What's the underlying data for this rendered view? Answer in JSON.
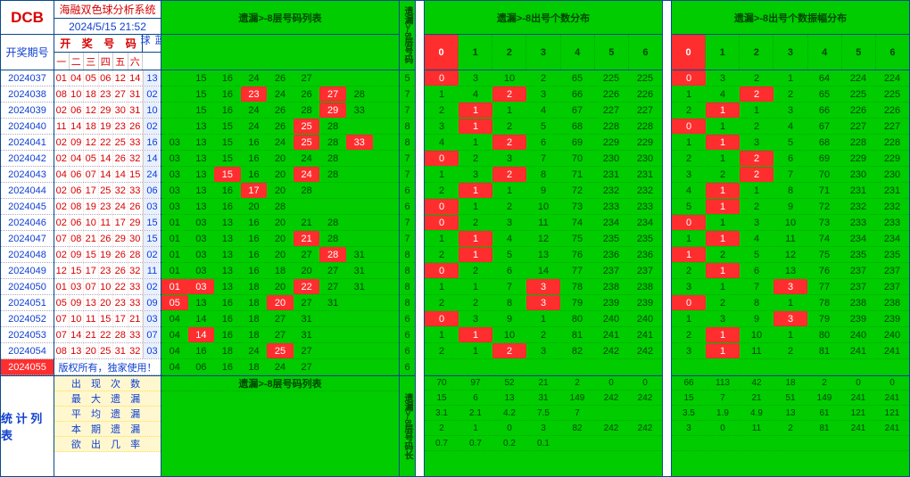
{
  "header": {
    "logo": "DCB",
    "sys_title": "海融双色球分析系统",
    "date_time": "2024/5/15  21:52",
    "issue_head": "开奖期号"
  },
  "prize": {
    "red_head_chars": [
      "开",
      "奖",
      "号",
      "码"
    ],
    "blue_head": "蓝球",
    "day_heads": [
      "一",
      "二",
      "三",
      "四",
      "五",
      "六"
    ],
    "copyright": "版权所有，独家使用！",
    "stat_head": "统 计 列 表",
    "stat_labels": [
      "出 现 次 数",
      "最 大 遗 漏",
      "平 均 遗 漏",
      "本 期 遗 漏",
      "欲  出  几  率"
    ]
  },
  "issues": [
    "2024037",
    "2024038",
    "2024039",
    "2024040",
    "2024041",
    "2024042",
    "2024043",
    "2024044",
    "2024045",
    "2024046",
    "2024047",
    "2024048",
    "2024049",
    "2024050",
    "2024051",
    "2024052",
    "2024053",
    "2024054",
    "2024055"
  ],
  "last_issue_hi": "2024055",
  "prize_rows": [
    {
      "red": [
        "01",
        "04",
        "05",
        "06",
        "12",
        "14"
      ],
      "blue": "13"
    },
    {
      "red": [
        "08",
        "10",
        "18",
        "23",
        "27",
        "31"
      ],
      "blue": "02"
    },
    {
      "red": [
        "02",
        "06",
        "12",
        "29",
        "30",
        "31"
      ],
      "blue": "10"
    },
    {
      "red": [
        "11",
        "14",
        "18",
        "19",
        "23",
        "26"
      ],
      "blue": "02"
    },
    {
      "red": [
        "02",
        "09",
        "12",
        "22",
        "25",
        "33"
      ],
      "blue": "16"
    },
    {
      "red": [
        "02",
        "04",
        "05",
        "14",
        "26",
        "32"
      ],
      "blue": "14"
    },
    {
      "red": [
        "04",
        "06",
        "07",
        "14",
        "14",
        "15"
      ],
      "blue": "24"
    },
    {
      "red": [
        "02",
        "06",
        "17",
        "25",
        "32",
        "33"
      ],
      "blue": "06"
    },
    {
      "red": [
        "02",
        "08",
        "19",
        "23",
        "24",
        "26"
      ],
      "blue": "03"
    },
    {
      "red": [
        "02",
        "06",
        "10",
        "11",
        "17",
        "29"
      ],
      "blue": "15"
    },
    {
      "red": [
        "07",
        "08",
        "21",
        "26",
        "29",
        "30"
      ],
      "blue": "15"
    },
    {
      "red": [
        "02",
        "09",
        "15",
        "19",
        "26",
        "28"
      ],
      "blue": "02"
    },
    {
      "red": [
        "12",
        "15",
        "17",
        "23",
        "26",
        "32"
      ],
      "blue": "11"
    },
    {
      "red": [
        "01",
        "03",
        "07",
        "10",
        "22",
        "33"
      ],
      "blue": "02"
    },
    {
      "red": [
        "05",
        "09",
        "13",
        "20",
        "23",
        "33"
      ],
      "blue": "09"
    },
    {
      "red": [
        "07",
        "10",
        "11",
        "15",
        "17",
        "21"
      ],
      "blue": "03"
    },
    {
      "red": [
        "07",
        "14",
        "21",
        "22",
        "28",
        "33"
      ],
      "blue": "07"
    },
    {
      "red": [
        "08",
        "13",
        "20",
        "25",
        "31",
        "32"
      ],
      "blue": "03"
    },
    {
      "red": [
        "",
        "",
        "",
        "",
        "",
        ""
      ],
      "blue": ""
    }
  ],
  "sec_list": {
    "title": "遗漏>-8层号码列表",
    "foot_title": "遗漏>-8层号码列表",
    "rows": [
      {
        "vals": [
          "",
          "15",
          "16",
          "24",
          "26",
          "27",
          "",
          "",
          ""
        ],
        "hi": []
      },
      {
        "vals": [
          "",
          "15",
          "16",
          "23",
          "24",
          "26",
          "27",
          "28",
          ""
        ],
        "hi": [
          3,
          6
        ]
      },
      {
        "vals": [
          "",
          "15",
          "16",
          "24",
          "26",
          "28",
          "29",
          "33",
          ""
        ],
        "hi": [
          6
        ]
      },
      {
        "vals": [
          "",
          "13",
          "15",
          "24",
          "26",
          "25",
          "28",
          "",
          ""
        ],
        "hi": [
          5
        ]
      },
      {
        "vals": [
          "03",
          "13",
          "15",
          "16",
          "24",
          "25",
          "28",
          "33",
          ""
        ],
        "hi": [
          5,
          7
        ]
      },
      {
        "vals": [
          "03",
          "13",
          "15",
          "16",
          "20",
          "24",
          "28",
          "",
          ""
        ],
        "hi": []
      },
      {
        "vals": [
          "03",
          "13",
          "15",
          "16",
          "20",
          "24",
          "28",
          "",
          ""
        ],
        "hi": [
          2,
          5
        ]
      },
      {
        "vals": [
          "03",
          "13",
          "16",
          "17",
          "20",
          "28",
          "",
          "",
          ""
        ],
        "hi": [
          3
        ]
      },
      {
        "vals": [
          "03",
          "13",
          "16",
          "20",
          "28",
          "",
          "",
          "",
          ""
        ],
        "hi": []
      },
      {
        "vals": [
          "01",
          "03",
          "13",
          "16",
          "20",
          "21",
          "28",
          ""
        ],
        "hi": []
      },
      {
        "vals": [
          "01",
          "03",
          "13",
          "16",
          "20",
          "21",
          "28",
          ""
        ],
        "hi": [
          5
        ]
      },
      {
        "vals": [
          "01",
          "03",
          "13",
          "16",
          "20",
          "27",
          "28",
          "31"
        ],
        "hi": [
          6
        ]
      },
      {
        "vals": [
          "01",
          "03",
          "13",
          "16",
          "18",
          "20",
          "27",
          "31"
        ],
        "hi": []
      },
      {
        "vals": [
          "01",
          "03",
          "13",
          "18",
          "20",
          "22",
          "27",
          "31"
        ],
        "hi": [
          0,
          1,
          5
        ]
      },
      {
        "vals": [
          "05",
          "13",
          "16",
          "18",
          "20",
          "27",
          "31",
          ""
        ],
        "hi": [
          0,
          4
        ]
      },
      {
        "vals": [
          "04",
          "14",
          "16",
          "18",
          "27",
          "31",
          "",
          ""
        ],
        "hi": []
      },
      {
        "vals": [
          "04",
          "14",
          "16",
          "18",
          "27",
          "31",
          "",
          ""
        ],
        "hi": [
          1
        ]
      },
      {
        "vals": [
          "04",
          "16",
          "18",
          "24",
          "25",
          "27",
          "",
          ""
        ],
        "hi": [
          4
        ]
      },
      {
        "vals": [
          "04",
          "06",
          "16",
          "18",
          "24",
          "27",
          "",
          ""
        ],
        "hi": []
      }
    ]
  },
  "narrow1": {
    "title": "遗漏>-8层号码",
    "vals": [
      "5",
      "7",
      "7",
      "8",
      "8",
      "7",
      "7",
      "6",
      "6",
      "7",
      "7",
      "8",
      "8",
      "8",
      "8",
      "6",
      "6",
      "6",
      "6"
    ],
    "hi": [],
    "foot": "遗漏>-8层号码长"
  },
  "sec_dist1": {
    "title": "遗漏>-8出号个数分布",
    "cols": [
      "0",
      "1",
      "2",
      "3",
      "4",
      "5",
      "6"
    ],
    "rows": [
      {
        "vals": [
          "0",
          "3",
          "10",
          "2",
          "65",
          "225",
          "225"
        ],
        "hi": [
          0
        ]
      },
      {
        "vals": [
          "1",
          "4",
          "2",
          "3",
          "66",
          "226",
          "226"
        ],
        "hi": [
          2
        ]
      },
      {
        "vals": [
          "2",
          "1",
          "1",
          "4",
          "67",
          "227",
          "227"
        ],
        "hi": [
          1
        ]
      },
      {
        "vals": [
          "3",
          "1",
          "2",
          "5",
          "68",
          "228",
          "228"
        ],
        "hi": [
          1
        ]
      },
      {
        "vals": [
          "4",
          "1",
          "2",
          "6",
          "69",
          "229",
          "229"
        ],
        "hi": [
          2
        ]
      },
      {
        "vals": [
          "0",
          "2",
          "3",
          "7",
          "70",
          "230",
          "230"
        ],
        "hi": [
          0
        ]
      },
      {
        "vals": [
          "1",
          "3",
          "2",
          "8",
          "71",
          "231",
          "231"
        ],
        "hi": [
          2
        ]
      },
      {
        "vals": [
          "2",
          "1",
          "1",
          "9",
          "72",
          "232",
          "232"
        ],
        "hi": [
          1
        ]
      },
      {
        "vals": [
          "0",
          "1",
          "2",
          "10",
          "73",
          "233",
          "233"
        ],
        "hi": [
          0
        ]
      },
      {
        "vals": [
          "0",
          "2",
          "3",
          "11",
          "74",
          "234",
          "234"
        ],
        "hi": [
          0
        ]
      },
      {
        "vals": [
          "1",
          "1",
          "4",
          "12",
          "75",
          "235",
          "235"
        ],
        "hi": [
          1
        ]
      },
      {
        "vals": [
          "2",
          "1",
          "5",
          "13",
          "76",
          "236",
          "236"
        ],
        "hi": [
          1
        ]
      },
      {
        "vals": [
          "0",
          "2",
          "6",
          "14",
          "77",
          "237",
          "237"
        ],
        "hi": [
          0
        ]
      },
      {
        "vals": [
          "1",
          "1",
          "7",
          "3",
          "78",
          "238",
          "238"
        ],
        "hi": [
          3
        ]
      },
      {
        "vals": [
          "2",
          "2",
          "8",
          "3",
          "79",
          "239",
          "239"
        ],
        "hi": [
          3
        ]
      },
      {
        "vals": [
          "0",
          "3",
          "9",
          "1",
          "80",
          "240",
          "240"
        ],
        "hi": [
          0
        ]
      },
      {
        "vals": [
          "1",
          "1",
          "10",
          "2",
          "81",
          "241",
          "241"
        ],
        "hi": [
          1
        ]
      },
      {
        "vals": [
          "2",
          "1",
          "2",
          "3",
          "82",
          "242",
          "242"
        ],
        "hi": [
          2
        ]
      },
      {
        "vals": [
          "",
          "",
          "",
          "",
          "",
          "",
          ""
        ],
        "hi": []
      }
    ],
    "sums": [
      [
        "70",
        "97",
        "52",
        "21",
        "2",
        "0",
        "0"
      ],
      [
        "15",
        "6",
        "13",
        "31",
        "149",
        "242",
        "242"
      ],
      [
        "3.1",
        "2.1",
        "4.2",
        "7.5",
        "7",
        "",
        ""
      ],
      [
        "2",
        "1",
        "0",
        "3",
        "82",
        "242",
        "242"
      ],
      [
        "0.7",
        "0.7",
        "0.2",
        "0.1",
        "",
        "",
        ""
      ]
    ]
  },
  "sec_dist2": {
    "title": "遗漏>-8出号个数振幅分布",
    "cols": [
      "0",
      "1",
      "2",
      "3",
      "4",
      "5",
      "6"
    ],
    "rows": [
      {
        "vals": [
          "0",
          "3",
          "2",
          "1",
          "64",
          "224",
          "224"
        ],
        "hi": [
          0
        ]
      },
      {
        "vals": [
          "1",
          "4",
          "2",
          "2",
          "65",
          "225",
          "225"
        ],
        "hi": [
          2
        ]
      },
      {
        "vals": [
          "2",
          "1",
          "1",
          "3",
          "66",
          "226",
          "226"
        ],
        "hi": [
          1
        ]
      },
      {
        "vals": [
          "0",
          "1",
          "2",
          "4",
          "67",
          "227",
          "227"
        ],
        "hi": [
          0
        ]
      },
      {
        "vals": [
          "1",
          "1",
          "3",
          "5",
          "68",
          "228",
          "228"
        ],
        "hi": [
          1
        ]
      },
      {
        "vals": [
          "2",
          "1",
          "2",
          "6",
          "69",
          "229",
          "229"
        ],
        "hi": [
          2
        ]
      },
      {
        "vals": [
          "3",
          "2",
          "2",
          "7",
          "70",
          "230",
          "230"
        ],
        "hi": [
          2
        ]
      },
      {
        "vals": [
          "4",
          "1",
          "1",
          "8",
          "71",
          "231",
          "231"
        ],
        "hi": [
          1
        ]
      },
      {
        "vals": [
          "5",
          "1",
          "2",
          "9",
          "72",
          "232",
          "232"
        ],
        "hi": [
          1
        ]
      },
      {
        "vals": [
          "0",
          "1",
          "3",
          "10",
          "73",
          "233",
          "233"
        ],
        "hi": [
          0
        ]
      },
      {
        "vals": [
          "1",
          "1",
          "4",
          "11",
          "74",
          "234",
          "234"
        ],
        "hi": [
          1
        ]
      },
      {
        "vals": [
          "1",
          "2",
          "5",
          "12",
          "75",
          "235",
          "235"
        ],
        "hi": [
          0
        ]
      },
      {
        "vals": [
          "2",
          "1",
          "6",
          "13",
          "76",
          "237",
          "237"
        ],
        "hi": [
          1
        ]
      },
      {
        "vals": [
          "3",
          "1",
          "7",
          "3",
          "77",
          "237",
          "237"
        ],
        "hi": [
          3
        ]
      },
      {
        "vals": [
          "0",
          "2",
          "8",
          "1",
          "78",
          "238",
          "238"
        ],
        "hi": [
          0
        ]
      },
      {
        "vals": [
          "1",
          "3",
          "9",
          "3",
          "79",
          "239",
          "239"
        ],
        "hi": [
          3
        ]
      },
      {
        "vals": [
          "2",
          "1",
          "10",
          "1",
          "80",
          "240",
          "240"
        ],
        "hi": [
          1
        ]
      },
      {
        "vals": [
          "3",
          "1",
          "11",
          "2",
          "81",
          "241",
          "241"
        ],
        "hi": [
          1
        ]
      },
      {
        "vals": [
          "",
          "",
          "",
          "",
          "",
          "",
          ""
        ],
        "hi": []
      }
    ],
    "sums": [
      [
        "66",
        "113",
        "42",
        "18",
        "2",
        "0",
        "0"
      ],
      [
        "15",
        "7",
        "21",
        "51",
        "149",
        "241",
        "241"
      ],
      [
        "3.5",
        "1.9",
        "4.9",
        "13",
        "61",
        "121",
        "121"
      ],
      [
        "3",
        "0",
        "11",
        "2",
        "81",
        "241",
        "241"
      ],
      [
        "",
        "",
        "",
        "",
        "",
        "",
        ""
      ]
    ]
  }
}
